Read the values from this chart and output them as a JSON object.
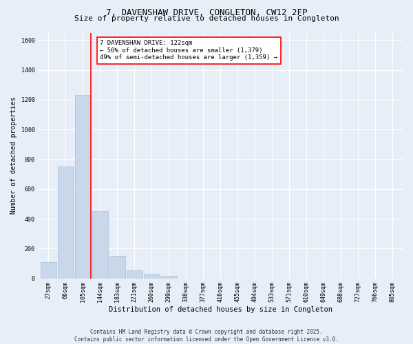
{
  "title": "7, DAVENSHAW DRIVE, CONGLETON, CW12 2FP",
  "subtitle": "Size of property relative to detached houses in Congleton",
  "xlabel": "Distribution of detached houses by size in Congleton",
  "ylabel": "Number of detached properties",
  "categories": [
    "27sqm",
    "66sqm",
    "105sqm",
    "144sqm",
    "183sqm",
    "221sqm",
    "260sqm",
    "299sqm",
    "338sqm",
    "377sqm",
    "416sqm",
    "455sqm",
    "494sqm",
    "533sqm",
    "571sqm",
    "610sqm",
    "649sqm",
    "688sqm",
    "727sqm",
    "766sqm",
    "805sqm"
  ],
  "values": [
    110,
    750,
    1230,
    450,
    150,
    55,
    30,
    15,
    0,
    0,
    0,
    0,
    0,
    0,
    0,
    0,
    0,
    0,
    0,
    0,
    0
  ],
  "bar_color": "#c8d8ea",
  "bar_edgecolor": "#a8c0d6",
  "vline_x_idx": 2,
  "vline_color": "red",
  "annotation_text": "7 DAVENSHAW DRIVE: 122sqm\n← 50% of detached houses are smaller (1,379)\n49% of semi-detached houses are larger (1,359) →",
  "annotation_box_edgecolor": "red",
  "annotation_box_facecolor": "white",
  "ylim": [
    0,
    1650
  ],
  "yticks": [
    0,
    200,
    400,
    600,
    800,
    1000,
    1200,
    1400,
    1600
  ],
  "background_color": "#e8eef8",
  "plot_background": "#e8eef8",
  "grid_color": "#ffffff",
  "footer": "Contains HM Land Registry data © Crown copyright and database right 2025.\nContains public sector information licensed under the Open Government Licence v3.0.",
  "title_fontsize": 9,
  "subtitle_fontsize": 8,
  "xlabel_fontsize": 7.5,
  "ylabel_fontsize": 7,
  "tick_fontsize": 6,
  "annotation_fontsize": 6.5,
  "footer_fontsize": 5.5
}
